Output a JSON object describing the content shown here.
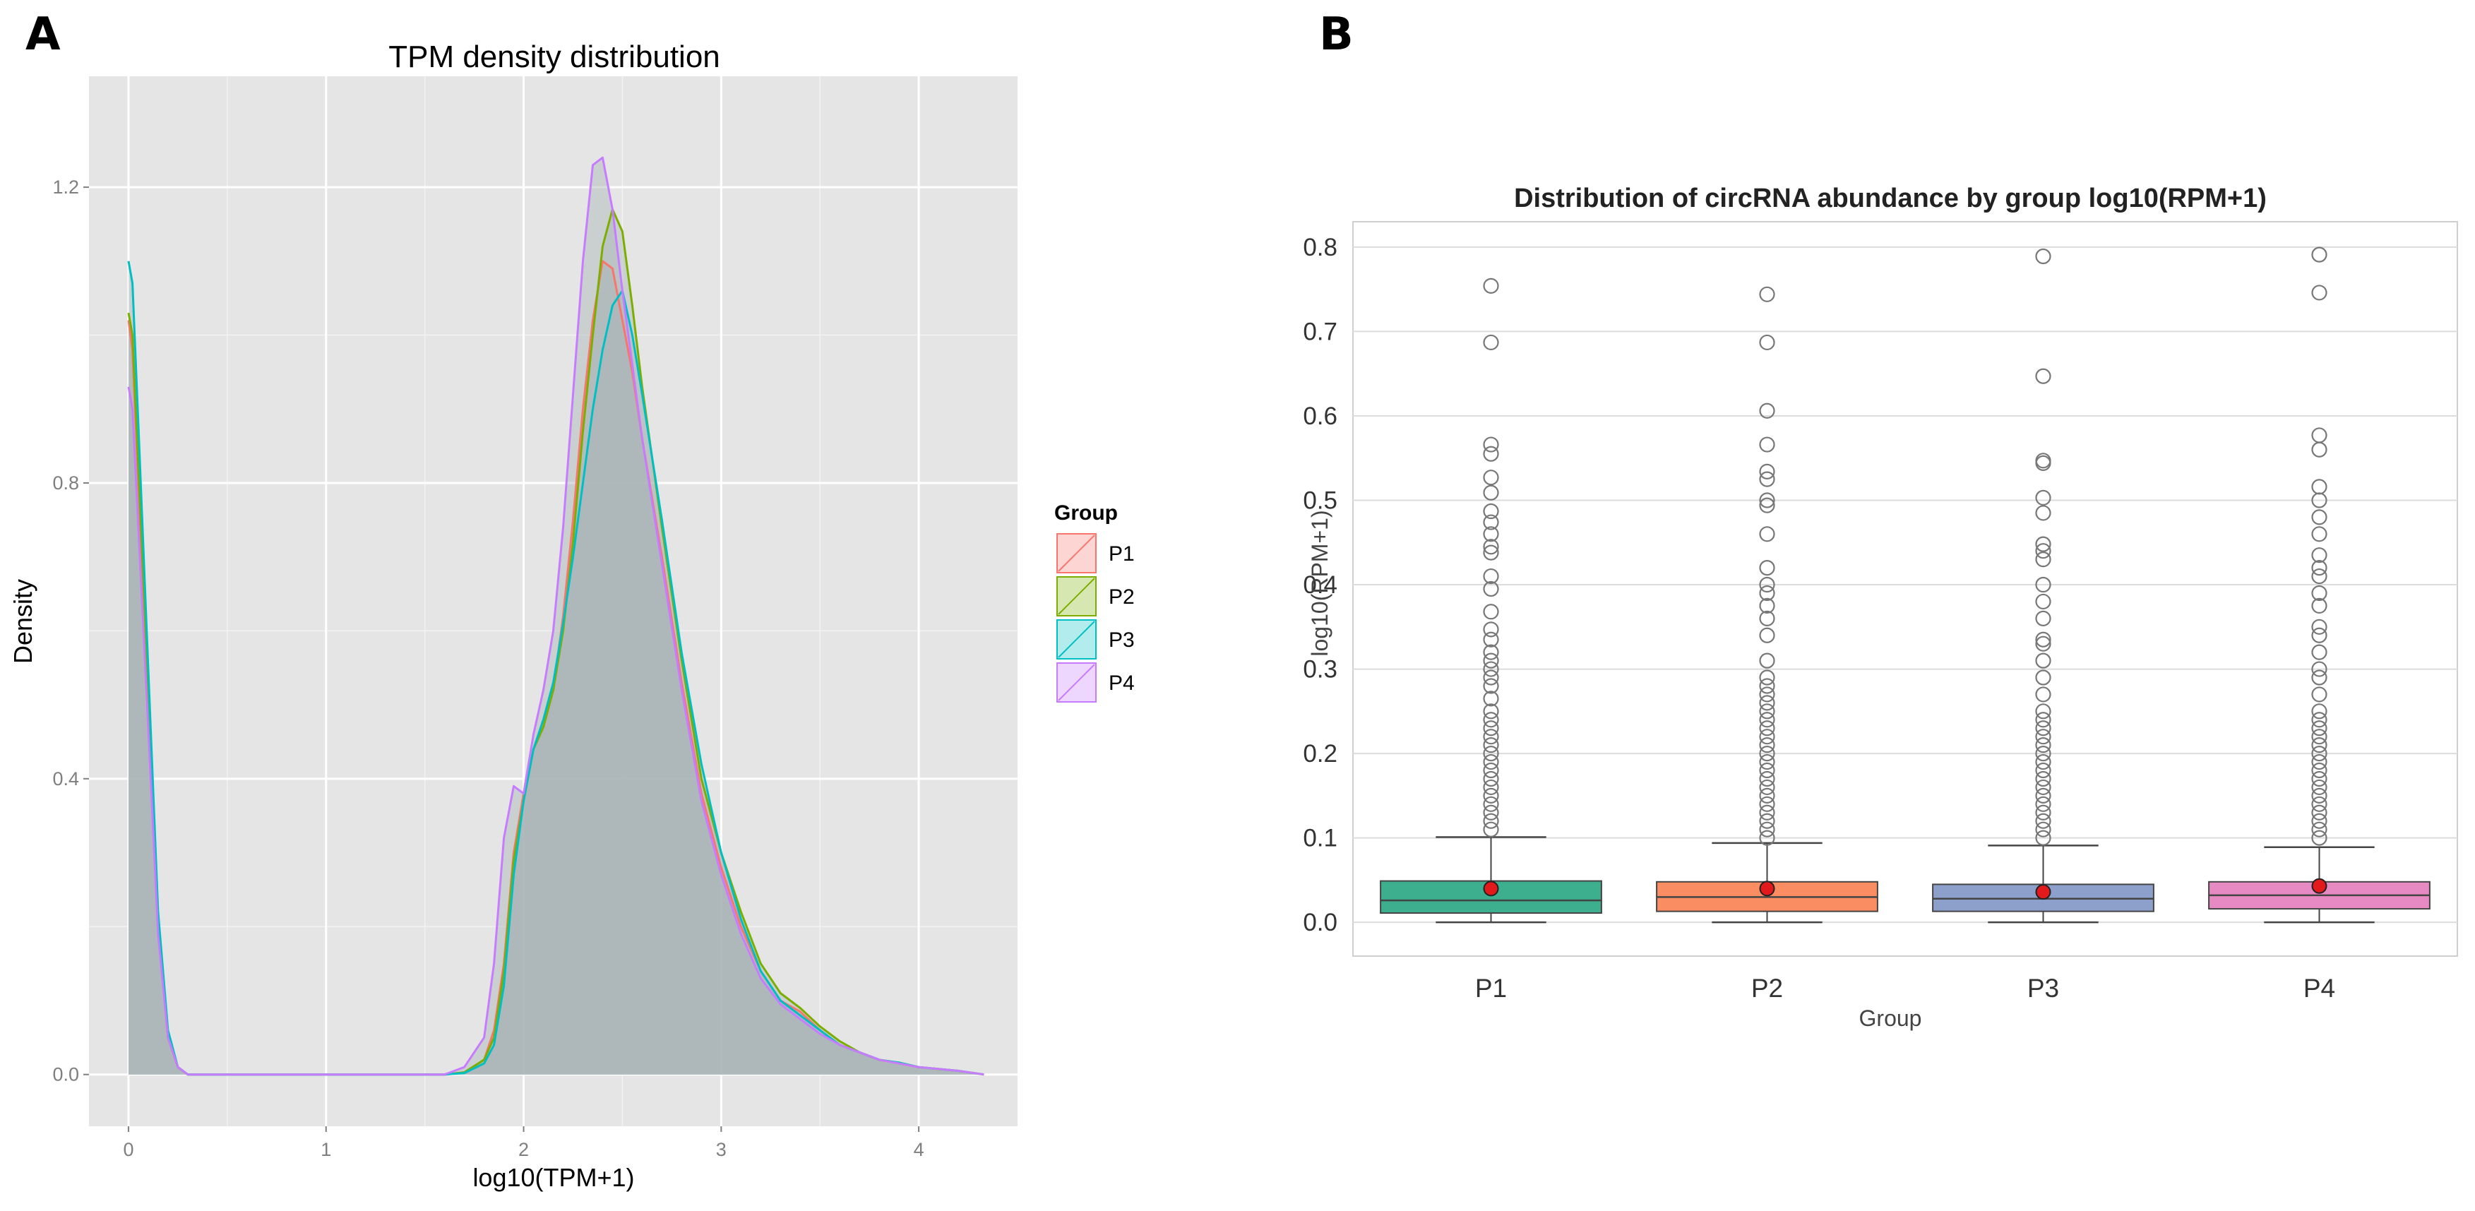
{
  "panels": {
    "a_label": "A",
    "b_label": "B"
  },
  "colors": {
    "P1": "#F8766D",
    "P2": "#7CAE00",
    "P3": "#00BFC4",
    "P4": "#C77CFF",
    "box_P1": "#3EAF8E",
    "box_P2": "#FB8D62",
    "box_P3": "#8DA0CB",
    "box_P4": "#E78AC3",
    "mean_marker": "#E31A1C",
    "density_fill": "#A8B4B5",
    "panel_bg": "#E5E5E5"
  },
  "chart_data": [
    {
      "type": "area",
      "title": "TPM density distribution",
      "xlabel": "log10(TPM+1)",
      "ylabel": "Density",
      "xlim": [
        -0.2,
        4.5
      ],
      "ylim": [
        -0.07,
        1.35
      ],
      "xticks": [
        0,
        1,
        2,
        3,
        4
      ],
      "yticks": [
        0.0,
        0.4,
        0.8,
        1.2
      ],
      "ytick_labels": [
        "0.0",
        "0.4",
        "0.8",
        "1.2"
      ],
      "legend": {
        "title": "Group",
        "position": "right",
        "entries": [
          "P1",
          "P2",
          "P3",
          "P4"
        ]
      },
      "series": [
        {
          "name": "P1",
          "x": [
            0,
            0.02,
            0.05,
            0.1,
            0.15,
            0.2,
            0.25,
            0.3,
            0.4,
            1.6,
            1.7,
            1.8,
            1.85,
            1.9,
            1.95,
            2.0,
            2.05,
            2.1,
            2.15,
            2.2,
            2.25,
            2.3,
            2.35,
            2.4,
            2.45,
            2.5,
            2.55,
            2.6,
            2.7,
            2.8,
            2.9,
            3.0,
            3.1,
            3.2,
            3.3,
            3.4,
            3.5,
            3.6,
            3.7,
            3.8,
            3.9,
            4.0,
            4.2,
            4.33
          ],
          "y": [
            1.02,
            0.98,
            0.8,
            0.5,
            0.2,
            0.05,
            0.01,
            0.0,
            0.0,
            0.0,
            0.003,
            0.02,
            0.06,
            0.15,
            0.3,
            0.38,
            0.44,
            0.47,
            0.52,
            0.62,
            0.75,
            0.9,
            1.02,
            1.1,
            1.09,
            1.02,
            0.95,
            0.86,
            0.7,
            0.53,
            0.38,
            0.28,
            0.2,
            0.14,
            0.1,
            0.085,
            0.06,
            0.04,
            0.03,
            0.02,
            0.015,
            0.01,
            0.005,
            0.0
          ]
        },
        {
          "name": "P2",
          "x": [
            0,
            0.02,
            0.05,
            0.1,
            0.15,
            0.2,
            0.25,
            0.3,
            0.4,
            1.6,
            1.7,
            1.8,
            1.85,
            1.9,
            1.95,
            2.0,
            2.05,
            2.1,
            2.15,
            2.2,
            2.25,
            2.3,
            2.35,
            2.4,
            2.45,
            2.5,
            2.55,
            2.6,
            2.7,
            2.8,
            2.9,
            3.0,
            3.1,
            3.2,
            3.3,
            3.4,
            3.5,
            3.6,
            3.7,
            3.8,
            3.9,
            4.0,
            4.2,
            4.33
          ],
          "y": [
            1.03,
            1.0,
            0.82,
            0.52,
            0.21,
            0.05,
            0.01,
            0.0,
            0.0,
            0.0,
            0.003,
            0.02,
            0.05,
            0.14,
            0.29,
            0.37,
            0.44,
            0.47,
            0.52,
            0.6,
            0.72,
            0.87,
            1.0,
            1.12,
            1.17,
            1.14,
            1.04,
            0.93,
            0.74,
            0.56,
            0.4,
            0.3,
            0.22,
            0.15,
            0.11,
            0.09,
            0.065,
            0.045,
            0.03,
            0.02,
            0.016,
            0.01,
            0.005,
            0.0
          ]
        },
        {
          "name": "P3",
          "x": [
            0,
            0.02,
            0.05,
            0.1,
            0.15,
            0.2,
            0.25,
            0.3,
            0.4,
            1.6,
            1.7,
            1.8,
            1.85,
            1.9,
            1.95,
            2.0,
            2.05,
            2.1,
            2.15,
            2.2,
            2.25,
            2.3,
            2.35,
            2.4,
            2.45,
            2.5,
            2.55,
            2.6,
            2.7,
            2.8,
            2.9,
            3.0,
            3.1,
            3.2,
            3.3,
            3.4,
            3.5,
            3.6,
            3.7,
            3.8,
            3.9,
            4.0,
            4.2,
            4.33
          ],
          "y": [
            1.1,
            1.07,
            0.88,
            0.55,
            0.22,
            0.06,
            0.01,
            0.0,
            0.0,
            0.0,
            0.002,
            0.015,
            0.04,
            0.12,
            0.27,
            0.37,
            0.44,
            0.48,
            0.53,
            0.61,
            0.7,
            0.8,
            0.9,
            0.98,
            1.04,
            1.06,
            1.0,
            0.92,
            0.75,
            0.57,
            0.42,
            0.3,
            0.21,
            0.14,
            0.1,
            0.08,
            0.06,
            0.04,
            0.03,
            0.02,
            0.016,
            0.01,
            0.005,
            0.0
          ]
        },
        {
          "name": "P4",
          "x": [
            0,
            0.02,
            0.05,
            0.1,
            0.15,
            0.2,
            0.25,
            0.3,
            0.4,
            1.6,
            1.7,
            1.8,
            1.85,
            1.9,
            1.95,
            2.0,
            2.05,
            2.1,
            2.15,
            2.2,
            2.25,
            2.3,
            2.35,
            2.4,
            2.45,
            2.5,
            2.55,
            2.6,
            2.7,
            2.8,
            2.9,
            3.0,
            3.1,
            3.2,
            3.3,
            3.4,
            3.5,
            3.6,
            3.7,
            3.8,
            3.9,
            4.0,
            4.2,
            4.33
          ],
          "y": [
            0.93,
            0.9,
            0.74,
            0.47,
            0.19,
            0.05,
            0.01,
            0.0,
            0.0,
            0.0,
            0.01,
            0.05,
            0.15,
            0.32,
            0.39,
            0.38,
            0.46,
            0.52,
            0.6,
            0.74,
            0.92,
            1.1,
            1.23,
            1.24,
            1.17,
            1.06,
            0.96,
            0.86,
            0.69,
            0.52,
            0.37,
            0.27,
            0.19,
            0.13,
            0.095,
            0.075,
            0.055,
            0.04,
            0.03,
            0.02,
            0.015,
            0.01,
            0.005,
            0.0
          ]
        }
      ]
    },
    {
      "type": "box",
      "title": "Distribution of circRNA abundance by group log10(RPM+1)",
      "xlabel": "Group",
      "ylabel": "log10(RPM+1)",
      "ylim": [
        -0.04,
        0.83
      ],
      "yticks": [
        0.0,
        0.1,
        0.2,
        0.3,
        0.4,
        0.5,
        0.6,
        0.7,
        0.8
      ],
      "ytick_labels": [
        "0.0",
        "0.1",
        "0.2",
        "0.3",
        "0.4",
        "0.5",
        "0.6",
        "0.7",
        "0.8"
      ],
      "categories": [
        "P1",
        "P2",
        "P3",
        "P4"
      ],
      "boxes": [
        {
          "name": "P1",
          "min": 0.0,
          "q1": 0.011,
          "median": 0.026,
          "q3": 0.049,
          "whisker_high": 0.101,
          "mean": 0.04,
          "outliers": [
            0.754,
            0.687,
            0.566,
            0.555,
            0.527,
            0.509,
            0.487,
            0.474,
            0.46,
            0.445,
            0.438,
            0.41,
            0.395,
            0.368,
            0.347,
            0.335,
            0.32,
            0.31,
            0.3,
            0.29,
            0.28,
            0.265,
            0.25,
            0.24,
            0.23,
            0.22,
            0.21,
            0.2,
            0.19,
            0.18,
            0.17,
            0.16,
            0.15,
            0.14,
            0.13,
            0.12,
            0.11
          ]
        },
        {
          "name": "P2",
          "min": 0.0,
          "q1": 0.013,
          "median": 0.03,
          "q3": 0.048,
          "whisker_high": 0.094,
          "mean": 0.04,
          "outliers": [
            0.744,
            0.687,
            0.606,
            0.566,
            0.534,
            0.525,
            0.5,
            0.494,
            0.46,
            0.42,
            0.4,
            0.39,
            0.375,
            0.36,
            0.34,
            0.31,
            0.29,
            0.28,
            0.27,
            0.26,
            0.25,
            0.24,
            0.23,
            0.22,
            0.21,
            0.2,
            0.19,
            0.18,
            0.17,
            0.16,
            0.15,
            0.14,
            0.13,
            0.12,
            0.11,
            0.1
          ]
        },
        {
          "name": "P3",
          "min": 0.0,
          "q1": 0.013,
          "median": 0.028,
          "q3": 0.045,
          "whisker_high": 0.091,
          "mean": 0.036,
          "outliers": [
            0.789,
            0.647,
            0.547,
            0.544,
            0.503,
            0.485,
            0.448,
            0.44,
            0.43,
            0.4,
            0.38,
            0.36,
            0.335,
            0.33,
            0.31,
            0.29,
            0.27,
            0.25,
            0.24,
            0.23,
            0.22,
            0.21,
            0.2,
            0.19,
            0.18,
            0.17,
            0.16,
            0.15,
            0.14,
            0.13,
            0.12,
            0.11,
            0.1
          ]
        },
        {
          "name": "P4",
          "min": 0.0,
          "q1": 0.016,
          "median": 0.032,
          "q3": 0.048,
          "whisker_high": 0.089,
          "mean": 0.043,
          "outliers": [
            0.791,
            0.746,
            0.577,
            0.56,
            0.516,
            0.5,
            0.48,
            0.46,
            0.435,
            0.42,
            0.41,
            0.39,
            0.375,
            0.35,
            0.34,
            0.32,
            0.3,
            0.29,
            0.27,
            0.25,
            0.24,
            0.23,
            0.22,
            0.21,
            0.2,
            0.19,
            0.18,
            0.17,
            0.16,
            0.15,
            0.14,
            0.13,
            0.12,
            0.11,
            0.1
          ]
        }
      ]
    }
  ]
}
